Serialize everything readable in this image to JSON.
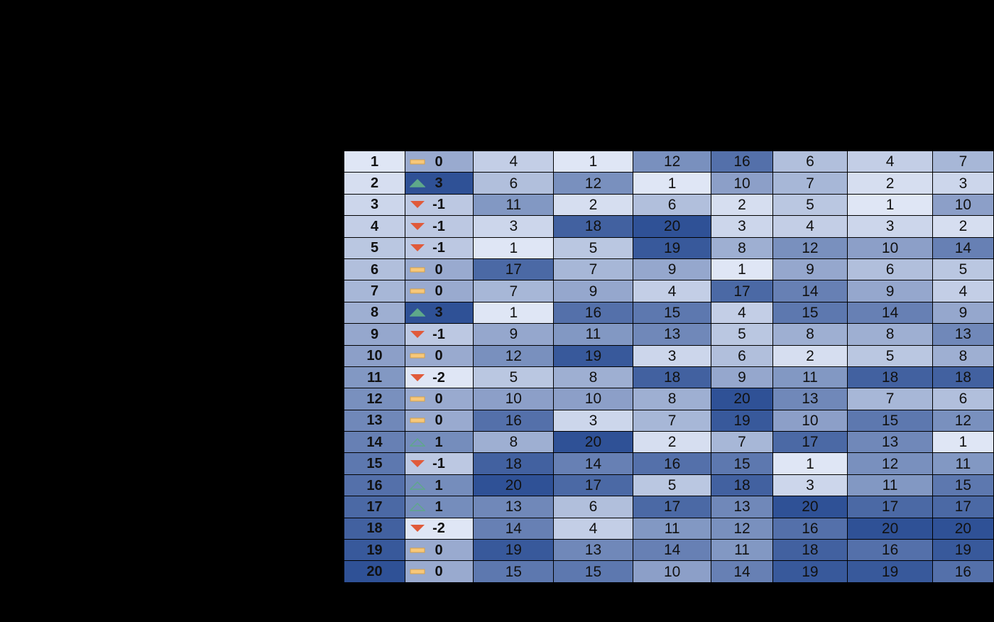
{
  "chart_data": {
    "type": "heatmap",
    "title": "",
    "rows": [
      {
        "rank": "1",
        "change": 0,
        "values": [
          4,
          1,
          12,
          16,
          6,
          4,
          7
        ]
      },
      {
        "rank": "2",
        "change": 3,
        "values": [
          6,
          12,
          1,
          10,
          7,
          2,
          3
        ]
      },
      {
        "rank": "3",
        "change": -1,
        "values": [
          11,
          2,
          6,
          2,
          5,
          1,
          10
        ]
      },
      {
        "rank": "4",
        "change": -1,
        "values": [
          3,
          18,
          20,
          3,
          4,
          3,
          2
        ]
      },
      {
        "rank": "5",
        "change": -1,
        "values": [
          1,
          5,
          19,
          8,
          12,
          10,
          14
        ]
      },
      {
        "rank": "6",
        "change": 0,
        "values": [
          17,
          7,
          9,
          1,
          9,
          6,
          5
        ]
      },
      {
        "rank": "7",
        "change": 0,
        "values": [
          7,
          9,
          4,
          17,
          14,
          9,
          4
        ]
      },
      {
        "rank": "8",
        "change": 3,
        "values": [
          1,
          16,
          15,
          4,
          15,
          14,
          9
        ]
      },
      {
        "rank": "9",
        "change": -1,
        "values": [
          9,
          11,
          13,
          5,
          8,
          8,
          13
        ]
      },
      {
        "rank": "10",
        "change": 0,
        "values": [
          12,
          19,
          3,
          6,
          2,
          5,
          8
        ]
      },
      {
        "rank": "11",
        "change": -2,
        "values": [
          5,
          8,
          18,
          9,
          11,
          18,
          18
        ]
      },
      {
        "rank": "12",
        "change": 0,
        "values": [
          10,
          10,
          8,
          20,
          13,
          7,
          6
        ]
      },
      {
        "rank": "13",
        "change": 0,
        "values": [
          16,
          3,
          7,
          19,
          10,
          15,
          12
        ]
      },
      {
        "rank": "14",
        "change": 1,
        "values": [
          8,
          20,
          2,
          7,
          17,
          13,
          1
        ]
      },
      {
        "rank": "15",
        "change": -1,
        "values": [
          18,
          14,
          16,
          15,
          1,
          12,
          11
        ]
      },
      {
        "rank": "16",
        "change": 1,
        "values": [
          20,
          17,
          5,
          18,
          3,
          11,
          15
        ]
      },
      {
        "rank": "17",
        "change": 1,
        "values": [
          13,
          6,
          17,
          13,
          20,
          17,
          17
        ]
      },
      {
        "rank": "18",
        "change": -2,
        "values": [
          14,
          4,
          11,
          12,
          16,
          20,
          20
        ]
      },
      {
        "rank": "19",
        "change": 0,
        "values": [
          19,
          13,
          14,
          11,
          18,
          16,
          19
        ]
      },
      {
        "rank": "20",
        "change": 0,
        "values": [
          15,
          15,
          10,
          14,
          19,
          19,
          16
        ]
      }
    ],
    "value_range": [
      1,
      20
    ],
    "colors": {
      "scale_low": "#dfe6f5",
      "scale_high": "#2f5196",
      "up_filled": "#5ea88a",
      "up_outline": "#5ea88a",
      "down": "#e05a3a",
      "neutral_fill": "#f7c87a",
      "neutral_stroke": "#d4a24c"
    }
  }
}
